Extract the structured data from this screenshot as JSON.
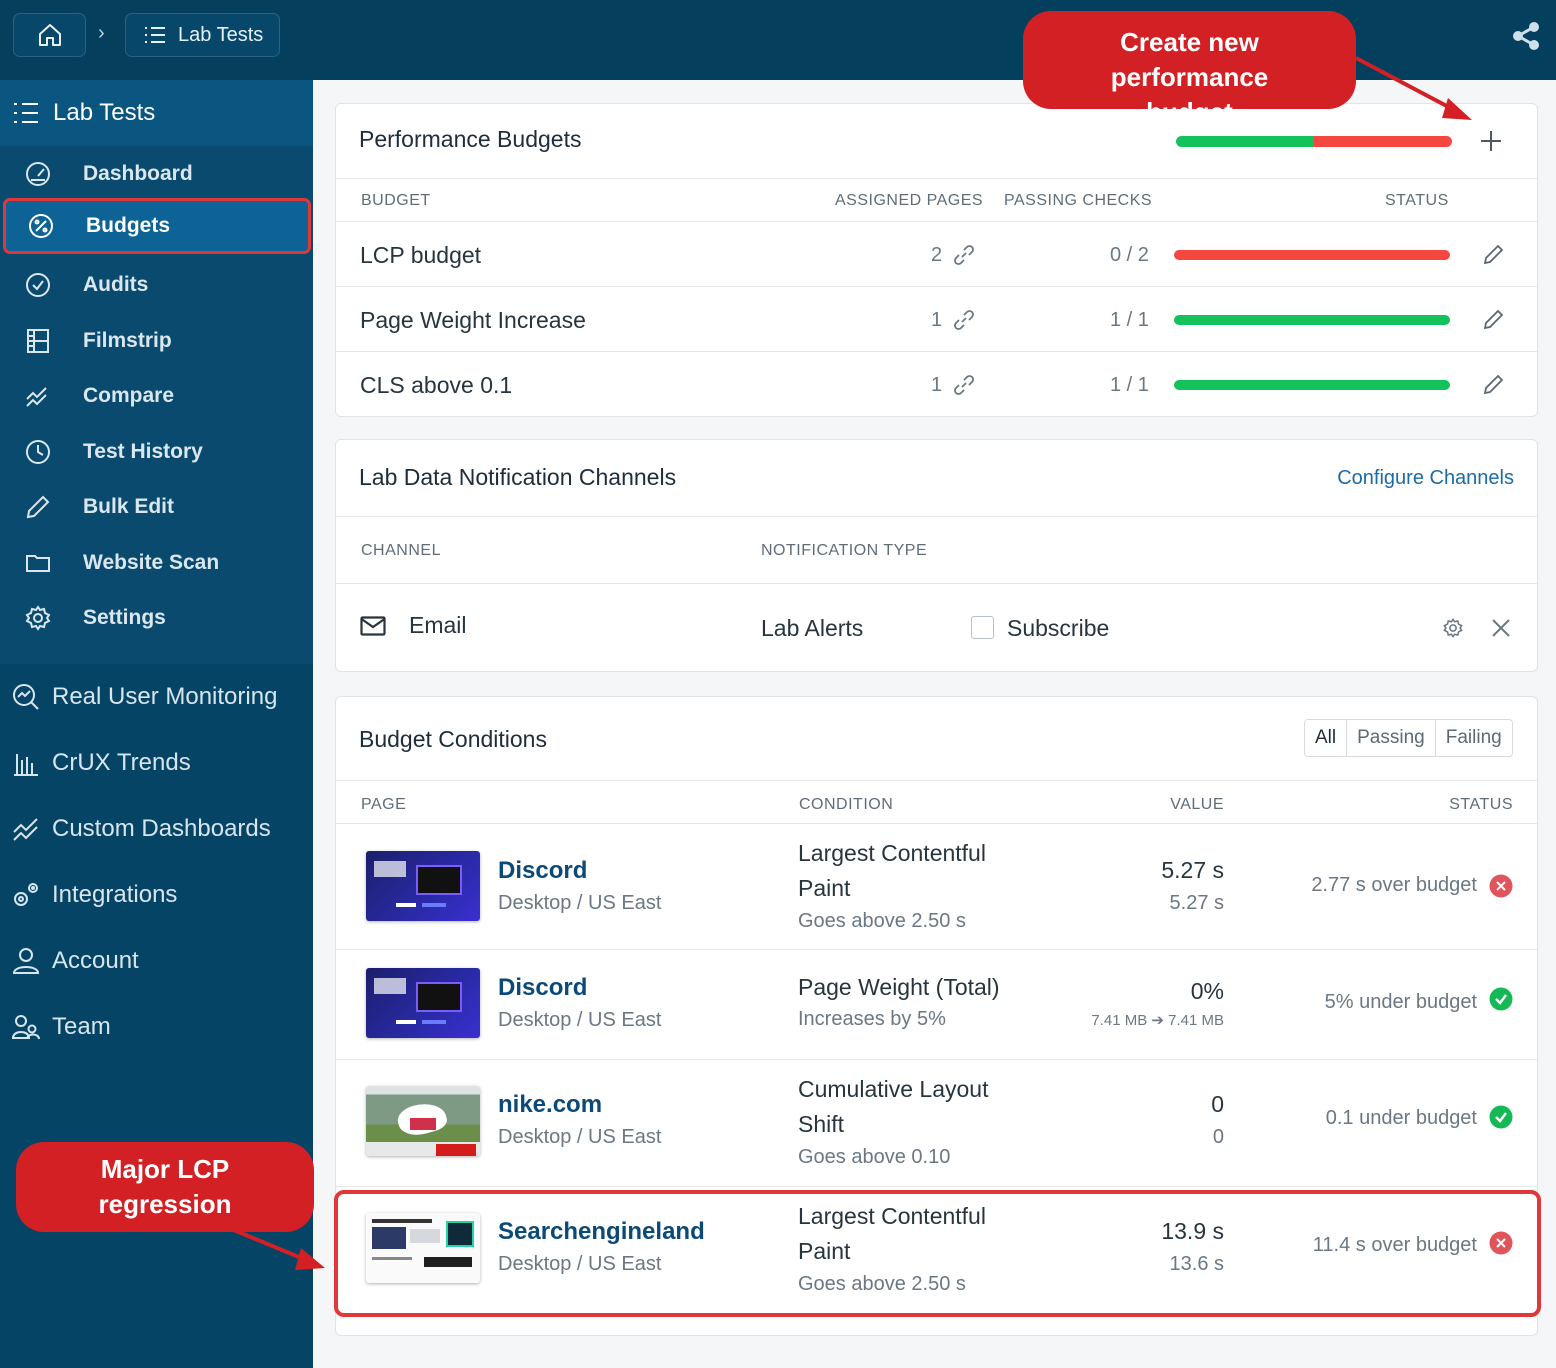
{
  "breadcrumb": {
    "current": "Lab Tests"
  },
  "sidebar": {
    "header": "Lab Tests",
    "sub_items": [
      {
        "label": "Dashboard",
        "icon": "gauge-icon"
      },
      {
        "label": "Budgets",
        "icon": "percent-icon",
        "active": true
      },
      {
        "label": "Audits",
        "icon": "check-circle-icon"
      },
      {
        "label": "Filmstrip",
        "icon": "filmstrip-icon"
      },
      {
        "label": "Compare",
        "icon": "compare-icon"
      },
      {
        "label": "Test History",
        "icon": "clock-icon"
      },
      {
        "label": "Bulk Edit",
        "icon": "pencil-icon"
      },
      {
        "label": "Website Scan",
        "icon": "folder-icon"
      },
      {
        "label": "Settings",
        "icon": "gear-icon"
      }
    ],
    "main_items": [
      {
        "label": "Real User Monitoring",
        "icon": "rum-icon"
      },
      {
        "label": "CrUX Trends",
        "icon": "bar-chart-icon"
      },
      {
        "label": "Custom Dashboards",
        "icon": "trend-icon"
      },
      {
        "label": "Integrations",
        "icon": "integrations-icon"
      },
      {
        "label": "Account",
        "icon": "user-icon"
      },
      {
        "label": "Team",
        "icon": "team-icon"
      }
    ]
  },
  "budgets": {
    "title": "Performance Budgets",
    "summary_pass_fraction": 0.5,
    "columns": {
      "budget": "BUDGET",
      "assigned": "ASSIGNED PAGES",
      "passing": "PASSING CHECKS",
      "status": "STATUS"
    },
    "rows": [
      {
        "name": "LCP budget",
        "assigned": "2",
        "passing": "0 / 2",
        "pass_fraction": 0
      },
      {
        "name": "Page Weight Increase",
        "assigned": "1",
        "passing": "1 / 1",
        "pass_fraction": 1
      },
      {
        "name": "CLS above 0.1",
        "assigned": "1",
        "passing": "1 / 1",
        "pass_fraction": 1
      }
    ]
  },
  "channels": {
    "title": "Lab Data Notification Channels",
    "configure_label": "Configure Channels",
    "columns": {
      "channel": "CHANNEL",
      "type": "NOTIFICATION TYPE"
    },
    "row": {
      "channel": "Email",
      "type": "Lab Alerts",
      "subscribe_label": "Subscribe"
    }
  },
  "conditions": {
    "title": "Budget Conditions",
    "filters": [
      "All",
      "Passing",
      "Failing"
    ],
    "columns": {
      "page": "PAGE",
      "condition": "CONDITION",
      "value": "VALUE",
      "status": "STATUS"
    },
    "rows": [
      {
        "page": "Discord",
        "sub": "Desktop / US East",
        "condition": "Largest Contentful Paint",
        "condition_sub": "Goes above 2.50 s",
        "value": "5.27 s",
        "value_sub": "5.27 s",
        "status": "2.77 s over budget",
        "passing": false
      },
      {
        "page": "Discord",
        "sub": "Desktop / US East",
        "condition": "Page Weight (Total)",
        "condition_sub": "Increases by 5%",
        "value": "0%",
        "value_sub": "7.41 MB ➔ 7.41 MB",
        "status": "5% under budget",
        "passing": true
      },
      {
        "page": "nike.com",
        "sub": "Desktop / US East",
        "condition": "Cumulative Layout Shift",
        "condition_sub": "Goes above 0.10",
        "value": "0",
        "value_sub": "0",
        "status": "0.1 under budget",
        "passing": true
      },
      {
        "page": "Searchengineland",
        "sub": "Desktop / US East",
        "condition": "Largest Contentful Paint",
        "condition_sub": "Goes above 2.50 s",
        "value": "13.9 s",
        "value_sub": "13.6 s",
        "status": "11.4 s over budget",
        "passing": false
      }
    ]
  },
  "annotations": {
    "create_budget": "Create new performance budget",
    "lcp_regression": "Major LCP regression"
  },
  "colors": {
    "fail": "#f4473f",
    "pass": "#14c25c",
    "annotation": "#d32024"
  }
}
